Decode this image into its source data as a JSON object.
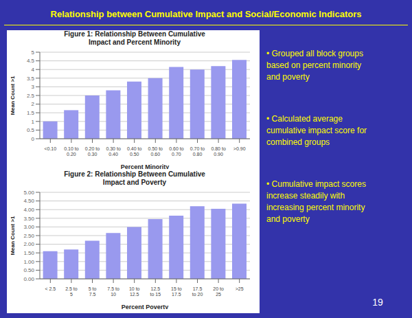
{
  "title": "Relationship between Cumulative Impact and Social/Economic Indicators",
  "annotations": [
    "• Grouped all block groups\nbased on percent minority\nand poverty",
    "• Calculated average\ncumulative impact score for\ncombined groups",
    "• Cumulative impact scores\nincrease steadily with\nincreasing percent minority\nand poverty",
    "19"
  ],
  "chart_data": [
    {
      "type": "bar",
      "title": "Figure 1: Relationship Between Cumulative\nImpact and Percent Minority",
      "x_label": "Percent Minority",
      "y_label": "Mean Count >1",
      "categories": [
        "<0.10",
        "0.10 to\n0.20",
        "0.20 to\n0.30",
        "0.30 to\n0.40",
        "0.40 to\n0.50",
        "0.50 to\n0.60",
        "0.60 to\n0.70",
        "0.70 to\n0.80",
        "0.80 to\n0.90",
        ">0.90"
      ],
      "values": [
        1.0,
        1.65,
        2.5,
        2.8,
        3.3,
        3.5,
        4.15,
        4.0,
        4.2,
        4.55
      ],
      "color": "#9999EE",
      "ylim": [
        0,
        5
      ],
      "yticks": [
        0,
        0.5,
        1,
        1.5,
        2,
        2.5,
        3,
        3.5,
        4,
        4.5,
        5
      ],
      "grid": true
    },
    {
      "type": "bar",
      "title": "Figure 2: Relationship Between Cumulative\nImpact and Poverty",
      "x_label": "Percent Poverty",
      "y_label": "Mean Count >1",
      "categories": [
        "< 2.5",
        "2.5 to\n5",
        "5 to\n7.5",
        "7.5 to\n10",
        "10 to\n12.5",
        "12.5\nto 15",
        "15 to\n17.5",
        "17.5\nto 20",
        "20 to\n25",
        ">25"
      ],
      "values": [
        1.6,
        1.7,
        2.2,
        2.65,
        3.0,
        3.45,
        3.65,
        4.2,
        4.05,
        4.35
      ],
      "color": "#9999EE",
      "ylim": [
        0,
        5.0
      ],
      "yticks": [
        {
          "value": 0,
          "label": "0.00"
        },
        {
          "value": 0.5,
          "label": "0.50"
        },
        {
          "value": 1,
          "label": "1.00"
        },
        {
          "value": 1.5,
          "label": "1.50"
        },
        {
          "value": 2,
          "label": "2.00"
        },
        {
          "value": 2.5,
          "label": "2.50"
        },
        {
          "value": 3,
          "label": "3.00"
        },
        {
          "value": 3.5,
          "label": "3.50"
        },
        {
          "value": 4,
          "label": "4.00"
        },
        {
          "value": 4.5,
          "label": "4.50"
        },
        {
          "value": 5,
          "label": "5.00"
        }
      ],
      "grid": true
    }
  ]
}
